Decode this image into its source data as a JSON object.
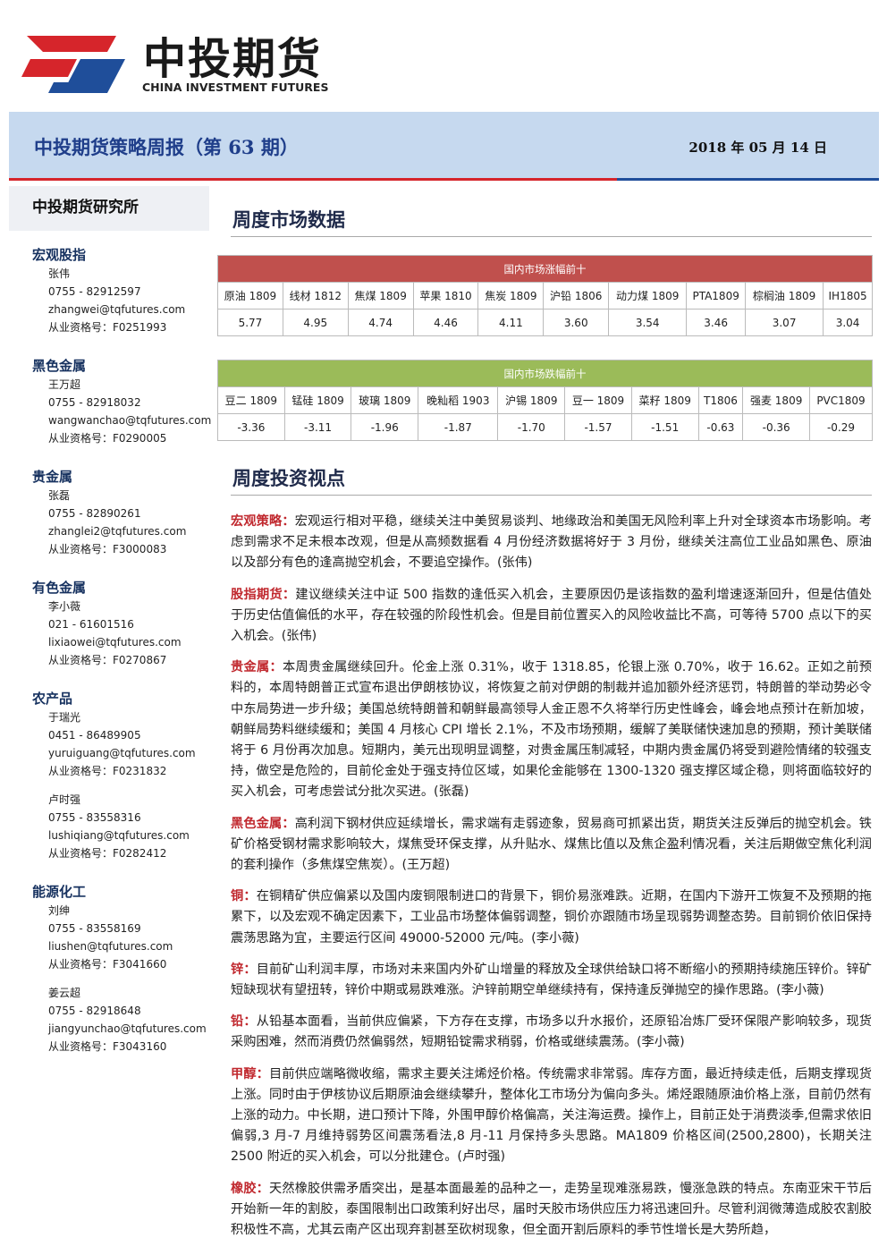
{
  "logo": {
    "name": "中投期货",
    "english": "CHINA INVESTMENT FUTURES"
  },
  "header": {
    "title": "中投期货策略周报（第 63 期）",
    "date": "2018 年 05 月 14 日"
  },
  "sidebar": {
    "org": "中投期货研究所",
    "sections": [
      {
        "title": "宏观股指",
        "people": [
          {
            "name": "张伟",
            "phone": "0755 - 82912597",
            "email": "zhangwei@tqfutures.com",
            "license": "从业资格号：F0251993"
          }
        ]
      },
      {
        "title": "黑色金属",
        "people": [
          {
            "name": "王万超",
            "phone": "0755 - 82918032",
            "email": "wangwanchao@tqfutures.com",
            "license": "从业资格号：F0290005"
          }
        ]
      },
      {
        "title": "贵金属",
        "people": [
          {
            "name": "张磊",
            "phone": "0755 - 82890261",
            "email": "zhanglei2@tqfutures.com",
            "license": "从业资格号：F3000083"
          }
        ]
      },
      {
        "title": "有色金属",
        "people": [
          {
            "name": "李小薇",
            "phone": "021 - 61601516",
            "email": "lixiaowei@tqfutures.com",
            "license": "从业资格号：F0270867"
          }
        ]
      },
      {
        "title": "农产品",
        "people": [
          {
            "name": "于瑞光",
            "phone": "0451 - 86489905",
            "email": "yuruiguang@tqfutures.com",
            "license": "从业资格号：F0231832"
          },
          {
            "name": "卢时强",
            "phone": "0755 - 83558316",
            "email": "lushiqiang@tqfutures.com",
            "license": "从业资格号：F0282412"
          }
        ]
      },
      {
        "title": "能源化工",
        "people": [
          {
            "name": "刘绅",
            "phone": "0755 - 83558169",
            "email": "liushen@tqfutures.com",
            "license": "从业资格号：F3041660"
          },
          {
            "name": "姜云超",
            "phone": "0755 - 82918648",
            "email": "jiangyunchao@tqfutures.com",
            "license": "从业资格号：F3043160"
          }
        ]
      }
    ]
  },
  "market": {
    "heading": "周度市场数据",
    "tables": [
      {
        "title": "国内市场涨幅前十",
        "headers": [
          "原油 1809",
          "线材 1812",
          "焦煤 1809",
          "苹果 1810",
          "焦炭 1809",
          "沪铅 1806",
          "动力煤 1809",
          "PTA1809",
          "棕榈油 1809",
          "IH1805"
        ],
        "values": [
          "5.77",
          "4.95",
          "4.74",
          "4.46",
          "4.11",
          "3.60",
          "3.54",
          "3.46",
          "3.07",
          "3.04"
        ]
      },
      {
        "title": "国内市场跌幅前十",
        "headers": [
          "豆二 1809",
          "锰硅 1809",
          "玻璃 1809",
          "晚籼稻 1903",
          "沪锡 1809",
          "豆一 1809",
          "菜籽 1809",
          "T1806",
          "强麦 1809",
          "PVC1809"
        ],
        "values": [
          "-3.36",
          "-3.11",
          "-1.96",
          "-1.87",
          "-1.70",
          "-1.57",
          "-1.51",
          "-0.63",
          "-0.36",
          "-0.29"
        ]
      }
    ]
  },
  "views": {
    "heading": "周度投资视点",
    "paragraphs": [
      {
        "label": "宏观策略：",
        "text": "宏观运行相对平稳，继续关注中美贸易谈判、地缘政治和美国无风险利率上升对全球资本市场影响。考虑到需求不足未根本改观，但是从高频数据看 4 月份经济数据将好于 3 月份，继续关注高位工业品如黑色、原油以及部分有色的逢高抛空机会，不要追空操作。(张伟)"
      },
      {
        "label": "股指期货：",
        "text": "建议继续关注中证 500 指数的逢低买入机会，主要原因仍是该指数的盈利增速逐渐回升，但是估值处于历史估值偏低的水平，存在较强的阶段性机会。但是目前位置买入的风险收益比不高，可等待 5700 点以下的买入机会。(张伟)"
      },
      {
        "label": "贵金属：",
        "text": "本周贵金属继续回升。伦金上涨 0.31%，收于 1318.85，伦银上涨 0.70%，收于 16.62。正如之前预料的，本周特朗普正式宣布退出伊朗核协议，将恢复之前对伊朗的制裁并追加额外经济惩罚，特朗普的举动势必令中东局势进一步升级；美国总统特朗普和朝鲜最高领导人金正恩不久将举行历史性峰会，峰会地点预计在新加坡，朝鲜局势料继续缓和；美国 4 月核心 CPI 增长 2.1%，不及市场预期，缓解了美联储快速加息的预期，预计美联储将于 6 月份再次加息。短期内，美元出现明显调整，对贵金属压制减轻，中期内贵金属仍将受到避险情绪的较强支持，做空是危险的，目前伦金处于强支持位区域，如果伦金能够在 1300-1320 强支撑区域企稳，则将面临较好的买入机会，可考虑尝试分批次买进。(张磊)"
      },
      {
        "label": "黑色金属：",
        "text": "高利润下钢材供应延续增长，需求端有走弱迹象，贸易商可抓紧出货，期货关注反弹后的抛空机会。铁矿价格受钢材需求影响较大，煤焦受环保支撑，从升贴水、煤焦比值以及焦企盈利情况看，关注后期做空焦化利润的套利操作（多焦煤空焦炭）。(王万超)"
      },
      {
        "label": "铜：",
        "text": "在铜精矿供应偏紧以及国内废铜限制进口的背景下，铜价易涨难跌。近期，在国内下游开工恢复不及预期的拖累下，以及宏观不确定因素下，工业品市场整体偏弱调整，铜价亦跟随市场呈现弱势调整态势。目前铜价依旧保持震荡思路为宜，主要运行区间 49000-52000 元/吨。(李小薇)"
      },
      {
        "label": "锌：",
        "text": "目前矿山利润丰厚，市场对未来国内外矿山增量的释放及全球供给缺口将不断缩小的预期持续施压锌价。锌矿短缺现状有望扭转，锌价中期或易跌难涨。沪锌前期空单继续持有，保持逢反弹抛空的操作思路。(李小薇)"
      },
      {
        "label": "铅：",
        "text": "从铅基本面看，当前供应偏紧，下方存在支撑，市场多以升水报价，还原铅冶炼厂受环保限产影响较多，现货采购困难，然而消费仍然偏弱然，短期铅锭需求稍弱，价格或继续震荡。(李小薇)"
      },
      {
        "label": "甲醇：",
        "text": "目前供应端略微收缩，需求主要关注烯烃价格。传统需求非常弱。库存方面，最近持续走低，后期支撑现货上涨。同时由于伊核协议后期原油会继续攀升，整体化工市场分为偏向多头。烯烃跟随原油价格上涨，目前仍然有上涨的动力。中长期，进口预计下降，外围甲醇价格偏高，关注海运费。操作上，目前正处于消费淡季,但需求依旧偏弱,3 月-7 月维持弱势区间震荡看法,8 月-11 月保持多头思路。MA1809 价格区间(2500,2800)，长期关注 2500 附近的买入机会，可以分批建仓。(卢时强)"
      },
      {
        "label": "橡胶：",
        "text": "天然橡胶供需矛盾突出，是基本面最差的品种之一，走势呈现难涨易跌，慢涨急跌的特点。东南亚宋干节后开始新一年的割胶，泰国限制出口政策利好出尽，届时天胶市场供应压力将迅速回升。尽管利润微薄造成胶农割胶积极性不高，尤其云南产区出现弃割甚至砍树现象，但全面开割后原料的季节性增长是大势所趋，"
      }
    ]
  }
}
